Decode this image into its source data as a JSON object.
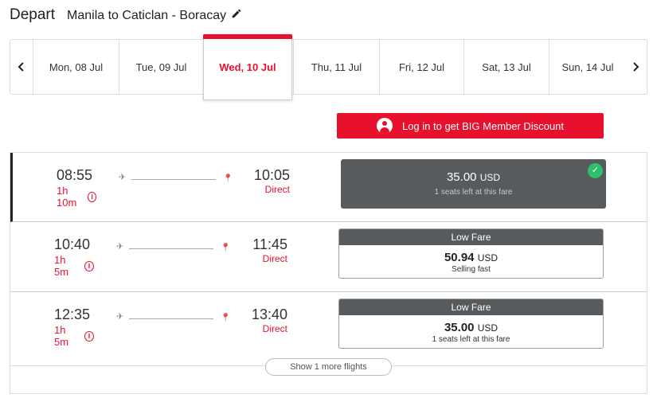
{
  "header": {
    "title": "Depart",
    "route": "Manila to Caticlan - Boracay",
    "edit_icon": "pencil-icon"
  },
  "dates": {
    "prev_icon": "chevron-left-icon",
    "next_icon": "chevron-right-icon",
    "items": [
      "Mon, 08 Jul",
      "Tue, 09 Jul",
      "Wed, 10 Jul",
      "Thu, 11 Jul",
      "Fri, 12 Jul",
      "Sat, 13 Jul",
      "Sun, 14 Jul"
    ],
    "selected": "Wed, 10 Jul"
  },
  "member_button": {
    "label": "Log in to get BIG Member Discount",
    "icon": "user-avatar-icon"
  },
  "flights": [
    {
      "dep": "08:55",
      "dur": "1h 10m",
      "arr": "10:05",
      "stops": "Direct",
      "price": "35.00",
      "currency": "USD",
      "note": "1 seats left at this fare",
      "selected": true
    },
    {
      "dep": "10:40",
      "dur": "1h 5m",
      "arr": "11:45",
      "stops": "Direct",
      "fare_label": "Low Fare",
      "price": "50.94",
      "currency": "USD",
      "note": "Selling fast"
    },
    {
      "dep": "12:35",
      "dur": "1h 5m",
      "arr": "13:40",
      "stops": "Direct",
      "fare_label": "Low Fare",
      "price": "35.00",
      "currency": "USD",
      "note": "1 seats left at this fare"
    }
  ],
  "more_flights": {
    "label": "Show 1 more flights"
  },
  "colors": {
    "brand_red": "#e8112d",
    "fare_dark": "#585b5e",
    "check_green": "#2ec06b"
  }
}
